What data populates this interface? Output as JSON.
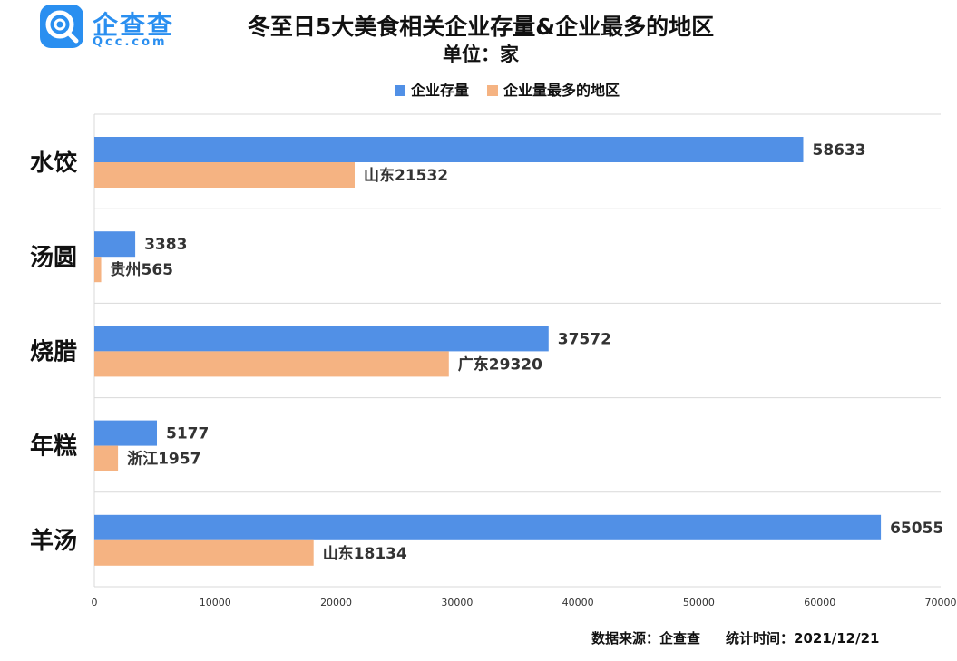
{
  "brand": {
    "name": "企查查",
    "site": "Qcc.com"
  },
  "header": {
    "title": "冬至日5大美食相关企业存量&企业最多的地区",
    "subtitle": "单位：家"
  },
  "footer": {
    "source": "数据来源：企查查",
    "time": "统计时间：2021/12/21"
  },
  "chart_data": {
    "type": "bar",
    "orientation": "horizontal",
    "title": "冬至日5大美食相关企业存量&企业最多的地区",
    "subtitle": "单位：家",
    "categories": [
      "水饺",
      "汤圆",
      "烧腊",
      "年糕",
      "羊汤"
    ],
    "series": [
      {
        "name": "企业存量",
        "color": "#5190e6",
        "values": [
          58633,
          3383,
          37572,
          5177,
          65055
        ],
        "labels": [
          "58633",
          "3383",
          "37572",
          "5177",
          "65055"
        ]
      },
      {
        "name": "企业量最多的地区",
        "color": "#f5b382",
        "values": [
          21532,
          565,
          29320,
          1957,
          18134
        ],
        "labels": [
          "山东21532",
          "贵州565",
          "广东29320",
          "浙江1957",
          "山东18134"
        ]
      }
    ],
    "xlim": [
      0,
      70000
    ],
    "xticks": [
      "0",
      "10000",
      "20000",
      "30000",
      "40000",
      "50000",
      "60000",
      "70000"
    ],
    "grid": true,
    "legend_position": "top-center"
  }
}
